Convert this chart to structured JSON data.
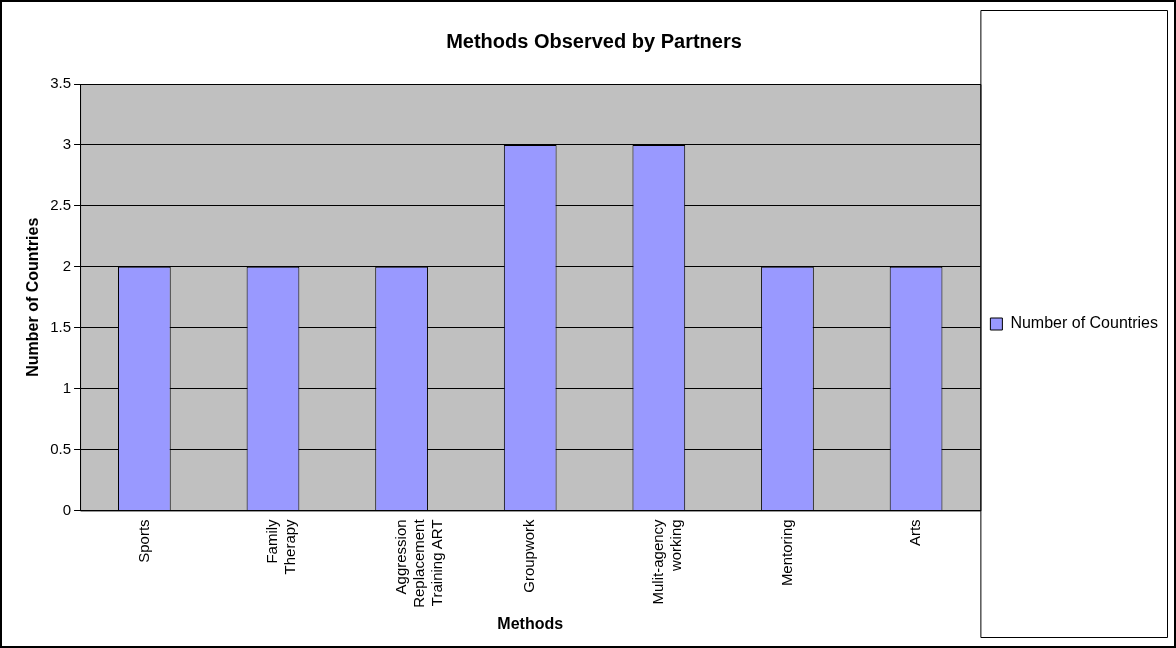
{
  "chart_data": {
    "type": "bar",
    "title": "Methods Observed by Partners",
    "xlabel": "Methods",
    "ylabel": "Number of Countries",
    "categories": [
      "Sports",
      "Family\nTherapy",
      "Aggression\nReplacement\nTraining ART",
      "Groupwork",
      "Mulit-agency\nworking",
      "Mentoring",
      "Arts"
    ],
    "series": [
      {
        "name": "Number of Countries",
        "color": "#9999ff",
        "values": [
          2,
          2,
          2,
          3,
          3,
          2,
          2
        ]
      }
    ],
    "ylim": [
      0,
      3.5
    ],
    "yticks": [
      0,
      0.5,
      1,
      1.5,
      2,
      2.5,
      3,
      3.5
    ],
    "grid": "y",
    "legend": "right"
  }
}
